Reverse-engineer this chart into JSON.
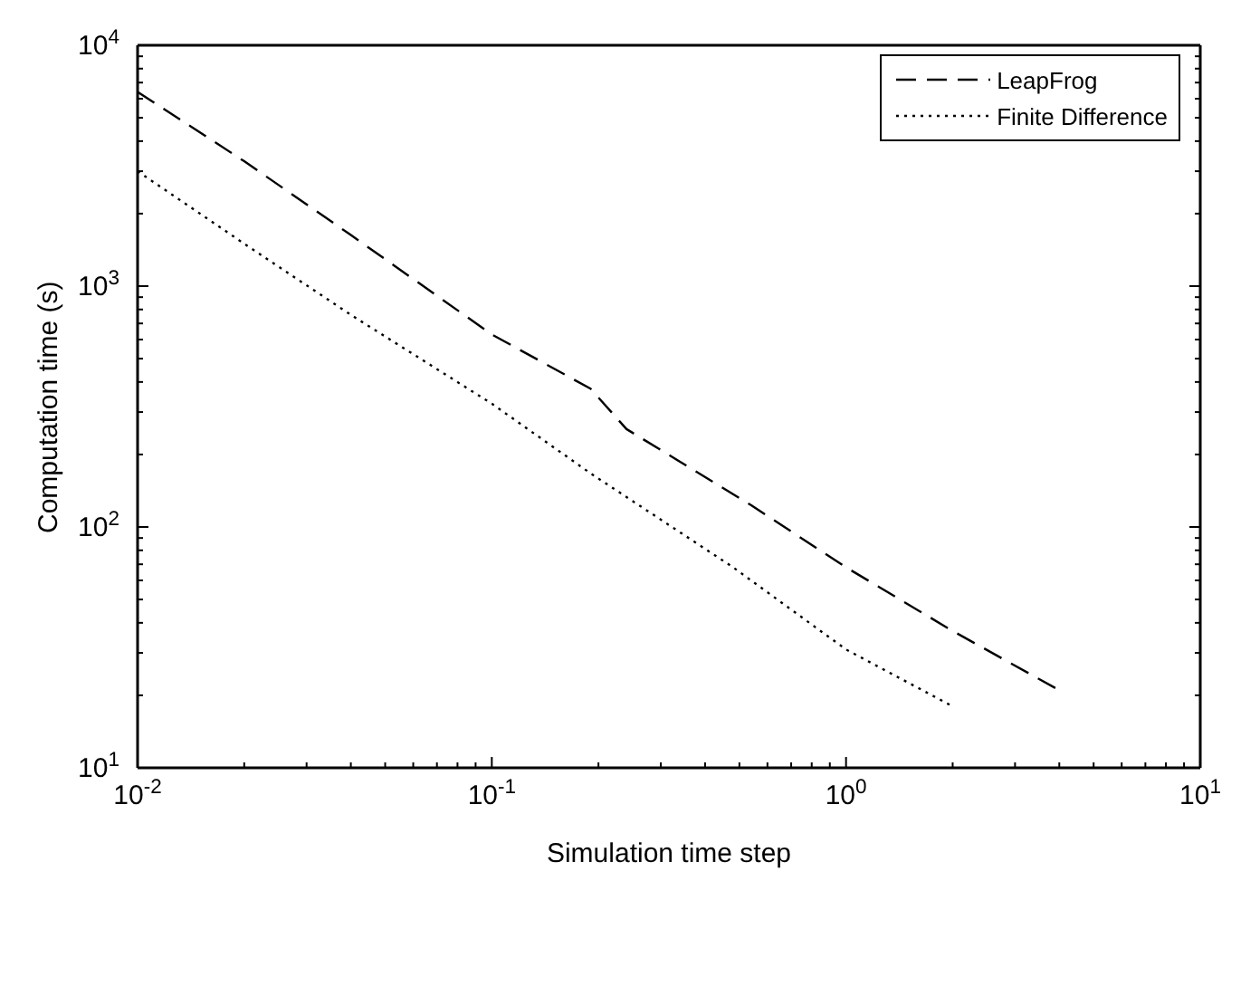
{
  "chart_data": {
    "type": "line",
    "xlabel": "Simulation time step",
    "ylabel": "Computation time (s)",
    "log": "xy",
    "legend": "top right",
    "marker": "none",
    "xlim": [
      0.01,
      10
    ],
    "ylim": [
      10,
      10000
    ],
    "xticks": [
      {
        "value": 0.01,
        "label": "10$^{-2}$"
      },
      {
        "value": 0.02,
        "label": null
      },
      {
        "value": 0.03,
        "label": null
      },
      {
        "value": 0.04,
        "label": null
      },
      {
        "value": 0.05,
        "label": null
      },
      {
        "value": 0.06,
        "label": null
      },
      {
        "value": 0.07,
        "label": null
      },
      {
        "value": 0.08,
        "label": null
      },
      {
        "value": 0.09,
        "label": null
      },
      {
        "value": 0.1,
        "label": "10$^{-1}$"
      },
      {
        "value": 0.2,
        "label": null
      },
      {
        "value": 0.3,
        "label": null
      },
      {
        "value": 0.4,
        "label": null
      },
      {
        "value": 0.5,
        "label": null
      },
      {
        "value": 0.6,
        "label": null
      },
      {
        "value": 0.7,
        "label": null
      },
      {
        "value": 0.8,
        "label": null
      },
      {
        "value": 0.9,
        "label": null
      },
      {
        "value": 1,
        "label": "10$^{0}$"
      },
      {
        "value": 2,
        "label": null
      },
      {
        "value": 3,
        "label": null
      },
      {
        "value": 4,
        "label": null
      },
      {
        "value": 5,
        "label": null
      },
      {
        "value": 6,
        "label": null
      },
      {
        "value": 7,
        "label": null
      },
      {
        "value": 8,
        "label": null
      },
      {
        "value": 9,
        "label": null
      },
      {
        "value": 10,
        "label": "10$^{1}$"
      }
    ],
    "yticks": [
      {
        "value": 10,
        "label": "10$^{1}$"
      },
      {
        "value": 20,
        "label": null
      },
      {
        "value": 30,
        "label": null
      },
      {
        "value": 40,
        "label": null
      },
      {
        "value": 50,
        "label": null
      },
      {
        "value": 60,
        "label": null
      },
      {
        "value": 70,
        "label": null
      },
      {
        "value": 80,
        "label": null
      },
      {
        "value": 90,
        "label": null
      },
      {
        "value": 100,
        "label": "10$^{2}$"
      },
      {
        "value": 200,
        "label": null
      },
      {
        "value": 300,
        "label": null
      },
      {
        "value": 400,
        "label": null
      },
      {
        "value": 500,
        "label": null
      },
      {
        "value": 600,
        "label": null
      },
      {
        "value": 700,
        "label": null
      },
      {
        "value": 800,
        "label": null
      },
      {
        "value": 900,
        "label": null
      },
      {
        "value": 1000,
        "label": "10$^{3}$"
      },
      {
        "value": 2000,
        "label": null
      },
      {
        "value": 3000,
        "label": null
      },
      {
        "value": 4000,
        "label": null
      },
      {
        "value": 5000,
        "label": null
      },
      {
        "value": 6000,
        "label": null
      },
      {
        "value": 7000,
        "label": null
      },
      {
        "value": 8000,
        "label": null
      },
      {
        "value": 9000,
        "label": null
      },
      {
        "value": 10000,
        "label": "10$^{4}$"
      }
    ],
    "series": [
      {
        "name": "LeapFrog",
        "color": "#000000",
        "line_style": "dashed",
        "x": [
          0.01,
          0.02,
          0.04,
          0.1,
          0.19,
          0.24,
          0.54,
          1,
          2,
          4
        ],
        "values": [
          6400,
          3300,
          1630,
          630,
          375,
          255,
          123,
          68,
          37,
          21
        ]
      },
      {
        "name": "Finite Difference",
        "color": "#000000",
        "line_style": "dotted",
        "x": [
          0.01,
          0.02,
          0.04,
          0.1,
          0.19,
          0.48,
          1,
          2
        ],
        "values": [
          3000,
          1500,
          760,
          325,
          167,
          68,
          31,
          18
        ]
      }
    ]
  }
}
